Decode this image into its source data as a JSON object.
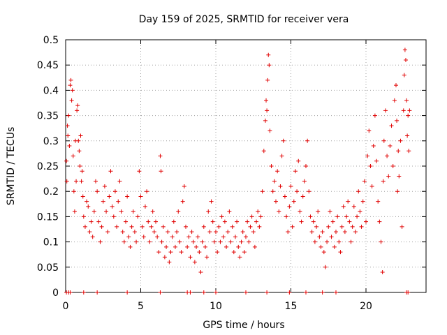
{
  "chart_data": {
    "type": "scatter",
    "title": "Day 159 of 2025, SRMTID for receiver vera",
    "xlabel": "GPS time / hours",
    "ylabel": "SRMTID / TECUs",
    "xlim": [
      0,
      24
    ],
    "ylim": [
      0,
      0.5
    ],
    "xticks": [
      0,
      5,
      10,
      15,
      20
    ],
    "yticks": [
      0,
      0.05,
      0.1,
      0.15,
      0.2,
      0.25,
      0.3,
      0.35,
      0.4,
      0.45,
      0.5
    ],
    "xtick_labels": [
      "0",
      "5",
      "10",
      "15",
      "20"
    ],
    "ytick_labels": [
      "0",
      "0.05",
      "0.1",
      "0.15",
      "0.2",
      "0.25",
      "0.3",
      "0.35",
      "0.4",
      "0.45",
      "0.5"
    ],
    "grid": true,
    "marker": "+",
    "series": [
      {
        "name": "SRMTID",
        "color": "#e00000",
        "points": [
          [
            0.05,
            0.26
          ],
          [
            0.08,
            0.22
          ],
          [
            0.12,
            0.33
          ],
          [
            0.15,
            0.31
          ],
          [
            0.2,
            0.35
          ],
          [
            0.25,
            0.29
          ],
          [
            0.3,
            0.41
          ],
          [
            0.35,
            0.42
          ],
          [
            0.4,
            0.38
          ],
          [
            0.45,
            0.4
          ],
          [
            0.5,
            0.27
          ],
          [
            0.55,
            0.2
          ],
          [
            0.6,
            0.16
          ],
          [
            0.65,
            0.3
          ],
          [
            0.7,
            0.22
          ],
          [
            0.75,
            0.36
          ],
          [
            0.8,
            0.37
          ],
          [
            0.85,
            0.3
          ],
          [
            0.9,
            0.28
          ],
          [
            0.95,
            0.25
          ],
          [
            1.0,
            0.31
          ],
          [
            1.05,
            0.22
          ],
          [
            1.1,
            0.24
          ],
          [
            1.15,
            0.19
          ],
          [
            1.2,
            0.15
          ],
          [
            1.3,
            0.13
          ],
          [
            1.4,
            0.18
          ],
          [
            1.5,
            0.17
          ],
          [
            1.6,
            0.12
          ],
          [
            1.7,
            0.14
          ],
          [
            1.8,
            0.11
          ],
          [
            1.9,
            0.16
          ],
          [
            2.0,
            0.22
          ],
          [
            2.1,
            0.2
          ],
          [
            2.2,
            0.14
          ],
          [
            2.3,
            0.1
          ],
          [
            2.4,
            0.13
          ],
          [
            2.5,
            0.18
          ],
          [
            2.6,
            0.21
          ],
          [
            2.7,
            0.16
          ],
          [
            2.8,
            0.12
          ],
          [
            2.9,
            0.19
          ],
          [
            3.0,
            0.24
          ],
          [
            3.1,
            0.17
          ],
          [
            3.2,
            0.15
          ],
          [
            3.3,
            0.2
          ],
          [
            3.4,
            0.13
          ],
          [
            3.5,
            0.18
          ],
          [
            3.6,
            0.22
          ],
          [
            3.7,
            0.16
          ],
          [
            3.8,
            0.12
          ],
          [
            3.9,
            0.1
          ],
          [
            4.0,
            0.14
          ],
          [
            4.1,
            0.19
          ],
          [
            4.2,
            0.11
          ],
          [
            4.3,
            0.09
          ],
          [
            4.4,
            0.13
          ],
          [
            4.5,
            0.16
          ],
          [
            4.6,
            0.12
          ],
          [
            4.7,
            0.1
          ],
          [
            4.8,
            0.15
          ],
          [
            4.9,
            0.24
          ],
          [
            5.0,
            0.19
          ],
          [
            5.1,
            0.13
          ],
          [
            5.2,
            0.11
          ],
          [
            5.3,
            0.17
          ],
          [
            5.4,
            0.2
          ],
          [
            5.5,
            0.14
          ],
          [
            5.6,
            0.1
          ],
          [
            5.7,
            0.13
          ],
          [
            5.8,
            0.16
          ],
          [
            5.9,
            0.12
          ],
          [
            6.0,
            0.14
          ],
          [
            6.1,
            0.11
          ],
          [
            6.2,
            0.08
          ],
          [
            6.3,
            0.27
          ],
          [
            6.35,
            0.24
          ],
          [
            6.4,
            0.1
          ],
          [
            6.5,
            0.13
          ],
          [
            6.6,
            0.07
          ],
          [
            6.7,
            0.09
          ],
          [
            6.8,
            0.12
          ],
          [
            6.9,
            0.06
          ],
          [
            7.0,
            0.08
          ],
          [
            7.1,
            0.11
          ],
          [
            7.2,
            0.14
          ],
          [
            7.3,
            0.09
          ],
          [
            7.4,
            0.12
          ],
          [
            7.5,
            0.16
          ],
          [
            7.6,
            0.1
          ],
          [
            7.7,
            0.08
          ],
          [
            7.8,
            0.18
          ],
          [
            7.9,
            0.21
          ],
          [
            8.0,
            0.13
          ],
          [
            8.1,
            0.09
          ],
          [
            8.2,
            0.11
          ],
          [
            8.3,
            0.07
          ],
          [
            8.4,
            0.12
          ],
          [
            8.5,
            0.1
          ],
          [
            8.6,
            0.06
          ],
          [
            8.7,
            0.09
          ],
          [
            8.8,
            0.11
          ],
          [
            8.9,
            0.08
          ],
          [
            9.0,
            0.04
          ],
          [
            9.1,
            0.1
          ],
          [
            9.2,
            0.13
          ],
          [
            9.3,
            0.09
          ],
          [
            9.4,
            0.07
          ],
          [
            9.5,
            0.16
          ],
          [
            9.6,
            0.12
          ],
          [
            9.7,
            0.18
          ],
          [
            9.8,
            0.14
          ],
          [
            9.9,
            0.1
          ],
          [
            10.0,
            0.12
          ],
          [
            10.1,
            0.08
          ],
          [
            10.2,
            0.13
          ],
          [
            10.3,
            0.1
          ],
          [
            10.4,
            0.15
          ],
          [
            10.5,
            0.11
          ],
          [
            10.6,
            0.14
          ],
          [
            10.7,
            0.09
          ],
          [
            10.8,
            0.12
          ],
          [
            10.9,
            0.16
          ],
          [
            11.0,
            0.1
          ],
          [
            11.1,
            0.13
          ],
          [
            11.2,
            0.08
          ],
          [
            11.3,
            0.11
          ],
          [
            11.4,
            0.14
          ],
          [
            11.5,
            0.09
          ],
          [
            11.6,
            0.07
          ],
          [
            11.7,
            0.1
          ],
          [
            11.8,
            0.12
          ],
          [
            11.9,
            0.08
          ],
          [
            12.0,
            0.11
          ],
          [
            12.1,
            0.14
          ],
          [
            12.2,
            0.1
          ],
          [
            12.3,
            0.13
          ],
          [
            12.4,
            0.15
          ],
          [
            12.5,
            0.12
          ],
          [
            12.6,
            0.09
          ],
          [
            12.7,
            0.14
          ],
          [
            12.8,
            0.16
          ],
          [
            12.9,
            0.13
          ],
          [
            13.0,
            0.15
          ],
          [
            13.1,
            0.2
          ],
          [
            13.2,
            0.28
          ],
          [
            13.3,
            0.34
          ],
          [
            13.35,
            0.38
          ],
          [
            13.4,
            0.36
          ],
          [
            13.45,
            0.42
          ],
          [
            13.5,
            0.47
          ],
          [
            13.55,
            0.45
          ],
          [
            13.6,
            0.32
          ],
          [
            13.7,
            0.25
          ],
          [
            13.8,
            0.2
          ],
          [
            13.9,
            0.22
          ],
          [
            14.0,
            0.18
          ],
          [
            14.1,
            0.24
          ],
          [
            14.2,
            0.16
          ],
          [
            14.3,
            0.21
          ],
          [
            14.4,
            0.27
          ],
          [
            14.5,
            0.3
          ],
          [
            14.6,
            0.19
          ],
          [
            14.7,
            0.15
          ],
          [
            14.8,
            0.12
          ],
          [
            14.9,
            0.17
          ],
          [
            15.0,
            0.21
          ],
          [
            15.1,
            0.13
          ],
          [
            15.2,
            0.18
          ],
          [
            15.3,
            0.24
          ],
          [
            15.4,
            0.2
          ],
          [
            15.5,
            0.26
          ],
          [
            15.6,
            0.16
          ],
          [
            15.7,
            0.14
          ],
          [
            15.8,
            0.19
          ],
          [
            15.9,
            0.22
          ],
          [
            16.0,
            0.25
          ],
          [
            16.1,
            0.3
          ],
          [
            16.2,
            0.2
          ],
          [
            16.3,
            0.15
          ],
          [
            16.4,
            0.12
          ],
          [
            16.5,
            0.14
          ],
          [
            16.6,
            0.1
          ],
          [
            16.7,
            0.13
          ],
          [
            16.8,
            0.16
          ],
          [
            16.9,
            0.11
          ],
          [
            17.0,
            0.09
          ],
          [
            17.1,
            0.12
          ],
          [
            17.2,
            0.08
          ],
          [
            17.3,
            0.05
          ],
          [
            17.4,
            0.1
          ],
          [
            17.5,
            0.13
          ],
          [
            17.6,
            0.16
          ],
          [
            17.7,
            0.11
          ],
          [
            17.8,
            0.14
          ],
          [
            17.9,
            0.09
          ],
          [
            18.0,
            0.12
          ],
          [
            18.1,
            0.15
          ],
          [
            18.2,
            0.1
          ],
          [
            18.3,
            0.08
          ],
          [
            18.4,
            0.13
          ],
          [
            18.5,
            0.17
          ],
          [
            18.6,
            0.12
          ],
          [
            18.7,
            0.15
          ],
          [
            18.8,
            0.18
          ],
          [
            18.9,
            0.14
          ],
          [
            19.0,
            0.1
          ],
          [
            19.1,
            0.13
          ],
          [
            19.2,
            0.17
          ],
          [
            19.3,
            0.12
          ],
          [
            19.4,
            0.15
          ],
          [
            19.5,
            0.2
          ],
          [
            19.6,
            0.16
          ],
          [
            19.7,
            0.13
          ],
          [
            19.8,
            0.18
          ],
          [
            19.9,
            0.22
          ],
          [
            20.0,
            0.14
          ],
          [
            20.1,
            0.27
          ],
          [
            20.2,
            0.32
          ],
          [
            20.3,
            0.25
          ],
          [
            20.4,
            0.21
          ],
          [
            20.5,
            0.29
          ],
          [
            20.6,
            0.35
          ],
          [
            20.7,
            0.26
          ],
          [
            20.8,
            0.18
          ],
          [
            20.9,
            0.14
          ],
          [
            21.0,
            0.1
          ],
          [
            21.1,
            0.04
          ],
          [
            21.15,
            0.22
          ],
          [
            21.2,
            0.3
          ],
          [
            21.3,
            0.36
          ],
          [
            21.4,
            0.27
          ],
          [
            21.5,
            0.23
          ],
          [
            21.6,
            0.29
          ],
          [
            21.7,
            0.33
          ],
          [
            21.8,
            0.25
          ],
          [
            21.9,
            0.38
          ],
          [
            22.0,
            0.41
          ],
          [
            22.05,
            0.34
          ],
          [
            22.1,
            0.2
          ],
          [
            22.15,
            0.28
          ],
          [
            22.2,
            0.23
          ],
          [
            22.3,
            0.3
          ],
          [
            22.4,
            0.13
          ],
          [
            22.5,
            0.36
          ],
          [
            22.55,
            0.43
          ],
          [
            22.6,
            0.48
          ],
          [
            22.65,
            0.46
          ],
          [
            22.7,
            0.38
          ],
          [
            22.75,
            0.31
          ],
          [
            22.8,
            0.35
          ],
          [
            22.85,
            0.28
          ],
          [
            22.9,
            0.36
          ],
          [
            0.05,
            0
          ],
          [
            0.2,
            0
          ],
          [
            0.3,
            0
          ],
          [
            1.2,
            0
          ],
          [
            2.1,
            0
          ],
          [
            4.1,
            0
          ],
          [
            6.3,
            0
          ],
          [
            8.1,
            0
          ],
          [
            8.3,
            0
          ],
          [
            9.2,
            0
          ],
          [
            10.0,
            0
          ],
          [
            12.0,
            0
          ],
          [
            13.4,
            0
          ],
          [
            14.9,
            0
          ],
          [
            16.0,
            0
          ],
          [
            17.1,
            0
          ],
          [
            18.0,
            0
          ],
          [
            22.7,
            0
          ],
          [
            22.8,
            0
          ]
        ]
      }
    ]
  }
}
